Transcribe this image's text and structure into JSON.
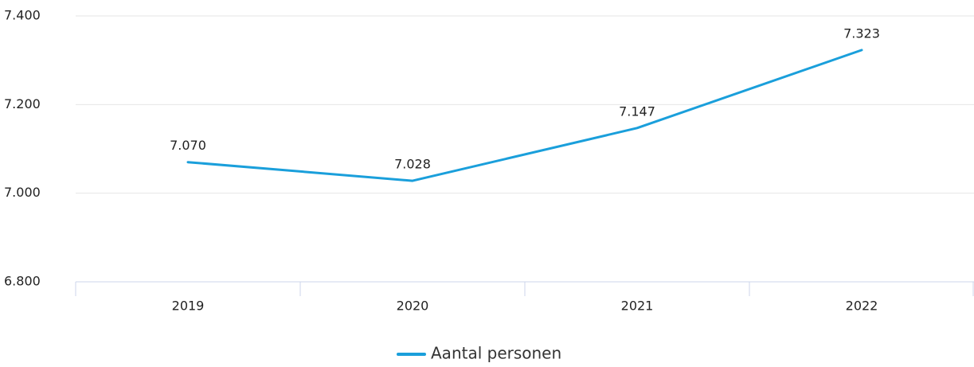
{
  "chart_data": {
    "type": "line",
    "categories": [
      "2019",
      "2020",
      "2021",
      "2022"
    ],
    "series": [
      {
        "name": "Aantal personen",
        "color": "#1a9fdb",
        "values": [
          7070,
          7028,
          7147,
          7323
        ],
        "value_labels": [
          "7.070",
          "7.028",
          "7.147",
          "7.323"
        ]
      }
    ],
    "ylim": [
      6800,
      7400
    ],
    "yticks": [
      {
        "value": 6800,
        "label": "6.800"
      },
      {
        "value": 7000,
        "label": "7.000"
      },
      {
        "value": 7200,
        "label": "7.200"
      },
      {
        "value": 7400,
        "label": "7.400"
      }
    ],
    "grid": true,
    "legend": "bottom"
  }
}
